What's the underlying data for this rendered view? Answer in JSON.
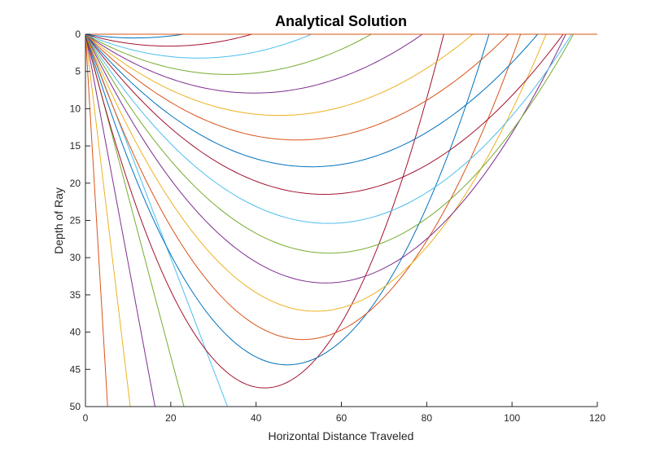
{
  "chart_data": {
    "type": "line",
    "title": "Analytical Solution",
    "xlabel": "Horizontal Distance Traveled",
    "ylabel": "Depth of Ray",
    "xlim": [
      0,
      120
    ],
    "ylim": [
      0,
      50
    ],
    "y_reversed": true,
    "grid": false,
    "x_ticks": [
      0,
      20,
      40,
      60,
      80,
      100,
      120
    ],
    "y_ticks": [
      0,
      5,
      10,
      15,
      20,
      25,
      30,
      35,
      40,
      45,
      50
    ],
    "color_order": [
      "#0072BD",
      "#D95319",
      "#EDB120",
      "#7E2F8E",
      "#77AC30",
      "#4DBEEE",
      "#A2142F"
    ],
    "series": [
      {
        "x": [
          0,
          0.0001
        ],
        "y": [
          0,
          50
        ]
      },
      {
        "x": [
          0,
          5.2
        ],
        "y": [
          0,
          50
        ]
      },
      {
        "x": [
          0,
          10.5
        ],
        "y": [
          0,
          50
        ]
      },
      {
        "x": [
          0,
          16.3
        ],
        "y": [
          0,
          50
        ]
      },
      {
        "x": [
          0,
          23.1
        ],
        "y": [
          0,
          50
        ]
      },
      {
        "x": [
          0,
          33.3
        ],
        "y": [
          0,
          50
        ]
      },
      {
        "x": [
          0,
          42.0,
          84.0
        ],
        "y": [
          0,
          47.5,
          0
        ]
      },
      {
        "x": [
          0,
          47.3,
          94.6
        ],
        "y": [
          0,
          44.4,
          0
        ]
      },
      {
        "x": [
          0,
          51.0,
          102.0
        ],
        "y": [
          0,
          41.0,
          0
        ]
      },
      {
        "x": [
          0,
          54.0,
          108.0
        ],
        "y": [
          0,
          37.2,
          0
        ]
      },
      {
        "x": [
          0,
          56.3,
          112.6
        ],
        "y": [
          0,
          33.4,
          0
        ]
      },
      {
        "x": [
          0,
          57.2,
          114.4
        ],
        "y": [
          0,
          29.4,
          0
        ]
      },
      {
        "x": [
          0,
          57.0,
          114.0
        ],
        "y": [
          0,
          25.4,
          0
        ]
      },
      {
        "x": [
          0,
          56.0,
          112.0
        ],
        "y": [
          0,
          21.5,
          0
        ]
      },
      {
        "x": [
          0,
          53.0,
          106.0
        ],
        "y": [
          0,
          17.8,
          0
        ]
      },
      {
        "x": [
          0,
          49.6,
          99.2
        ],
        "y": [
          0,
          14.2,
          0
        ]
      },
      {
        "x": [
          0,
          45.4,
          90.8
        ],
        "y": [
          0,
          10.9,
          0
        ]
      },
      {
        "x": [
          0,
          39.5,
          79.0
        ],
        "y": [
          0,
          7.9,
          0
        ]
      },
      {
        "x": [
          0,
          33.5,
          67.0
        ],
        "y": [
          0,
          5.4,
          0
        ]
      },
      {
        "x": [
          0,
          26.5,
          53.0
        ],
        "y": [
          0,
          3.2,
          0
        ]
      },
      {
        "x": [
          0,
          19.5,
          39.0
        ],
        "y": [
          0,
          1.6,
          0
        ]
      },
      {
        "x": [
          0,
          11.5,
          23.0
        ],
        "y": [
          0,
          0.5,
          0
        ]
      },
      {
        "x": [
          0,
          120
        ],
        "y": [
          0,
          0
        ]
      }
    ]
  }
}
